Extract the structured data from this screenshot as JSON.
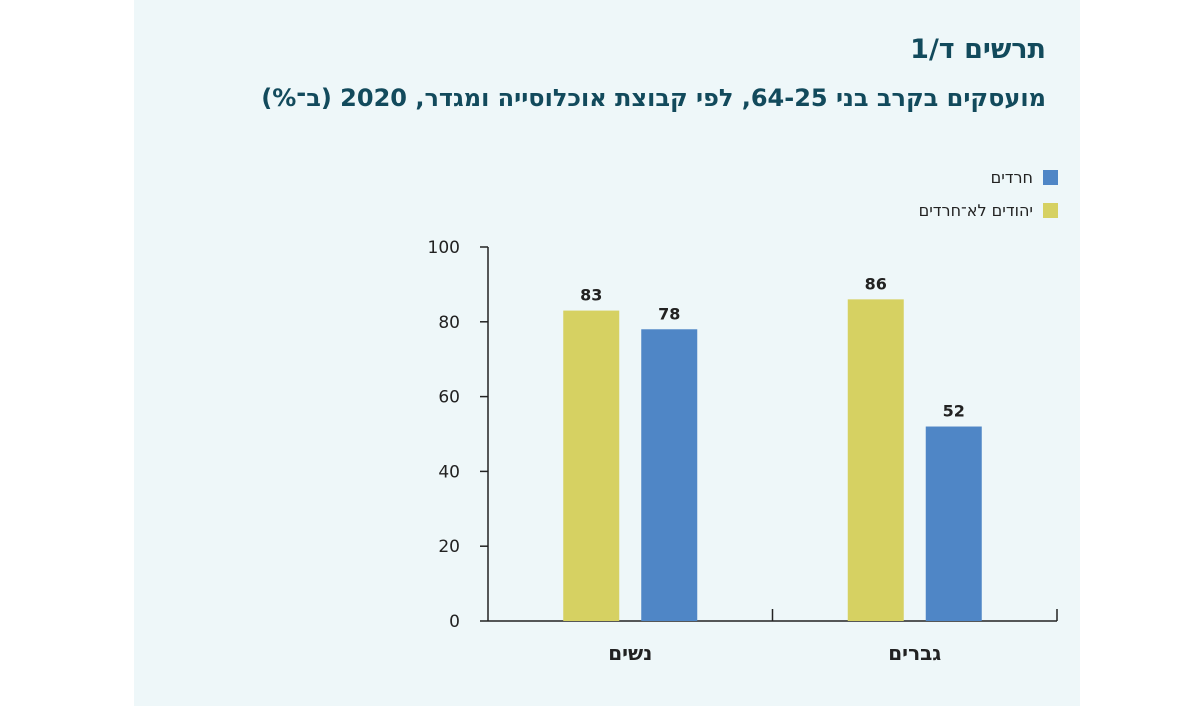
{
  "figure": {
    "title": "תרשים ד/1",
    "subtitle": "מועסקים בקרב בני 64-25, לפי קבוצת אוכלוסייה ומגדר, 2020 (ב־%)"
  },
  "colors": {
    "background": "#eef7f9",
    "title": "#124a5c",
    "haredim": "#4f86c6",
    "non_haredi_jews": "#d6d162"
  },
  "chart_data": {
    "type": "bar",
    "categories": [
      "גברים",
      "נשים"
    ],
    "series": [
      {
        "name": "חרדים",
        "values": [
          52,
          78
        ],
        "color": "#4f86c6"
      },
      {
        "name": "יהודים לא־חרדים",
        "values": [
          86,
          83
        ],
        "color": "#d6d162"
      }
    ],
    "ylim": [
      0,
      100
    ],
    "yticks": [
      0,
      20,
      40,
      60,
      80,
      100
    ],
    "data_labels": true,
    "grid": false,
    "legend_position": "top-right",
    "direction": "rtl"
  }
}
